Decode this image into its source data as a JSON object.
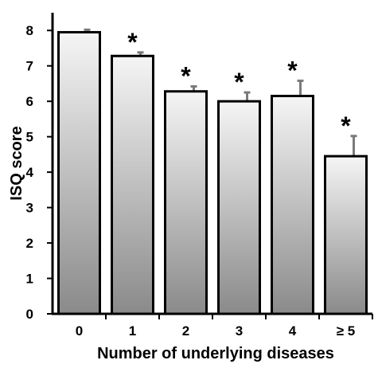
{
  "chart_data": {
    "type": "bar",
    "categories": [
      "0",
      "1",
      "2",
      "3",
      "4",
      "≥ 5"
    ],
    "values": [
      7.95,
      7.28,
      6.28,
      6.0,
      6.15,
      4.45
    ],
    "errors": [
      0.07,
      0.1,
      0.14,
      0.25,
      0.43,
      0.57
    ],
    "significance": [
      "",
      "*",
      "*",
      "*",
      "*",
      "*"
    ],
    "title": "",
    "xlabel": "Number of underlying diseases",
    "ylabel": "ISQ score",
    "ylim": [
      0,
      8.5
    ],
    "yticks": [
      0,
      1,
      2,
      3,
      4,
      5,
      6,
      7,
      8
    ],
    "grid": false,
    "colors": {
      "bar_top": "#f5f5f5",
      "bar_bottom": "#8a8a8a",
      "bar_stroke": "#000000",
      "error_bar": "#7a7a7a"
    }
  }
}
